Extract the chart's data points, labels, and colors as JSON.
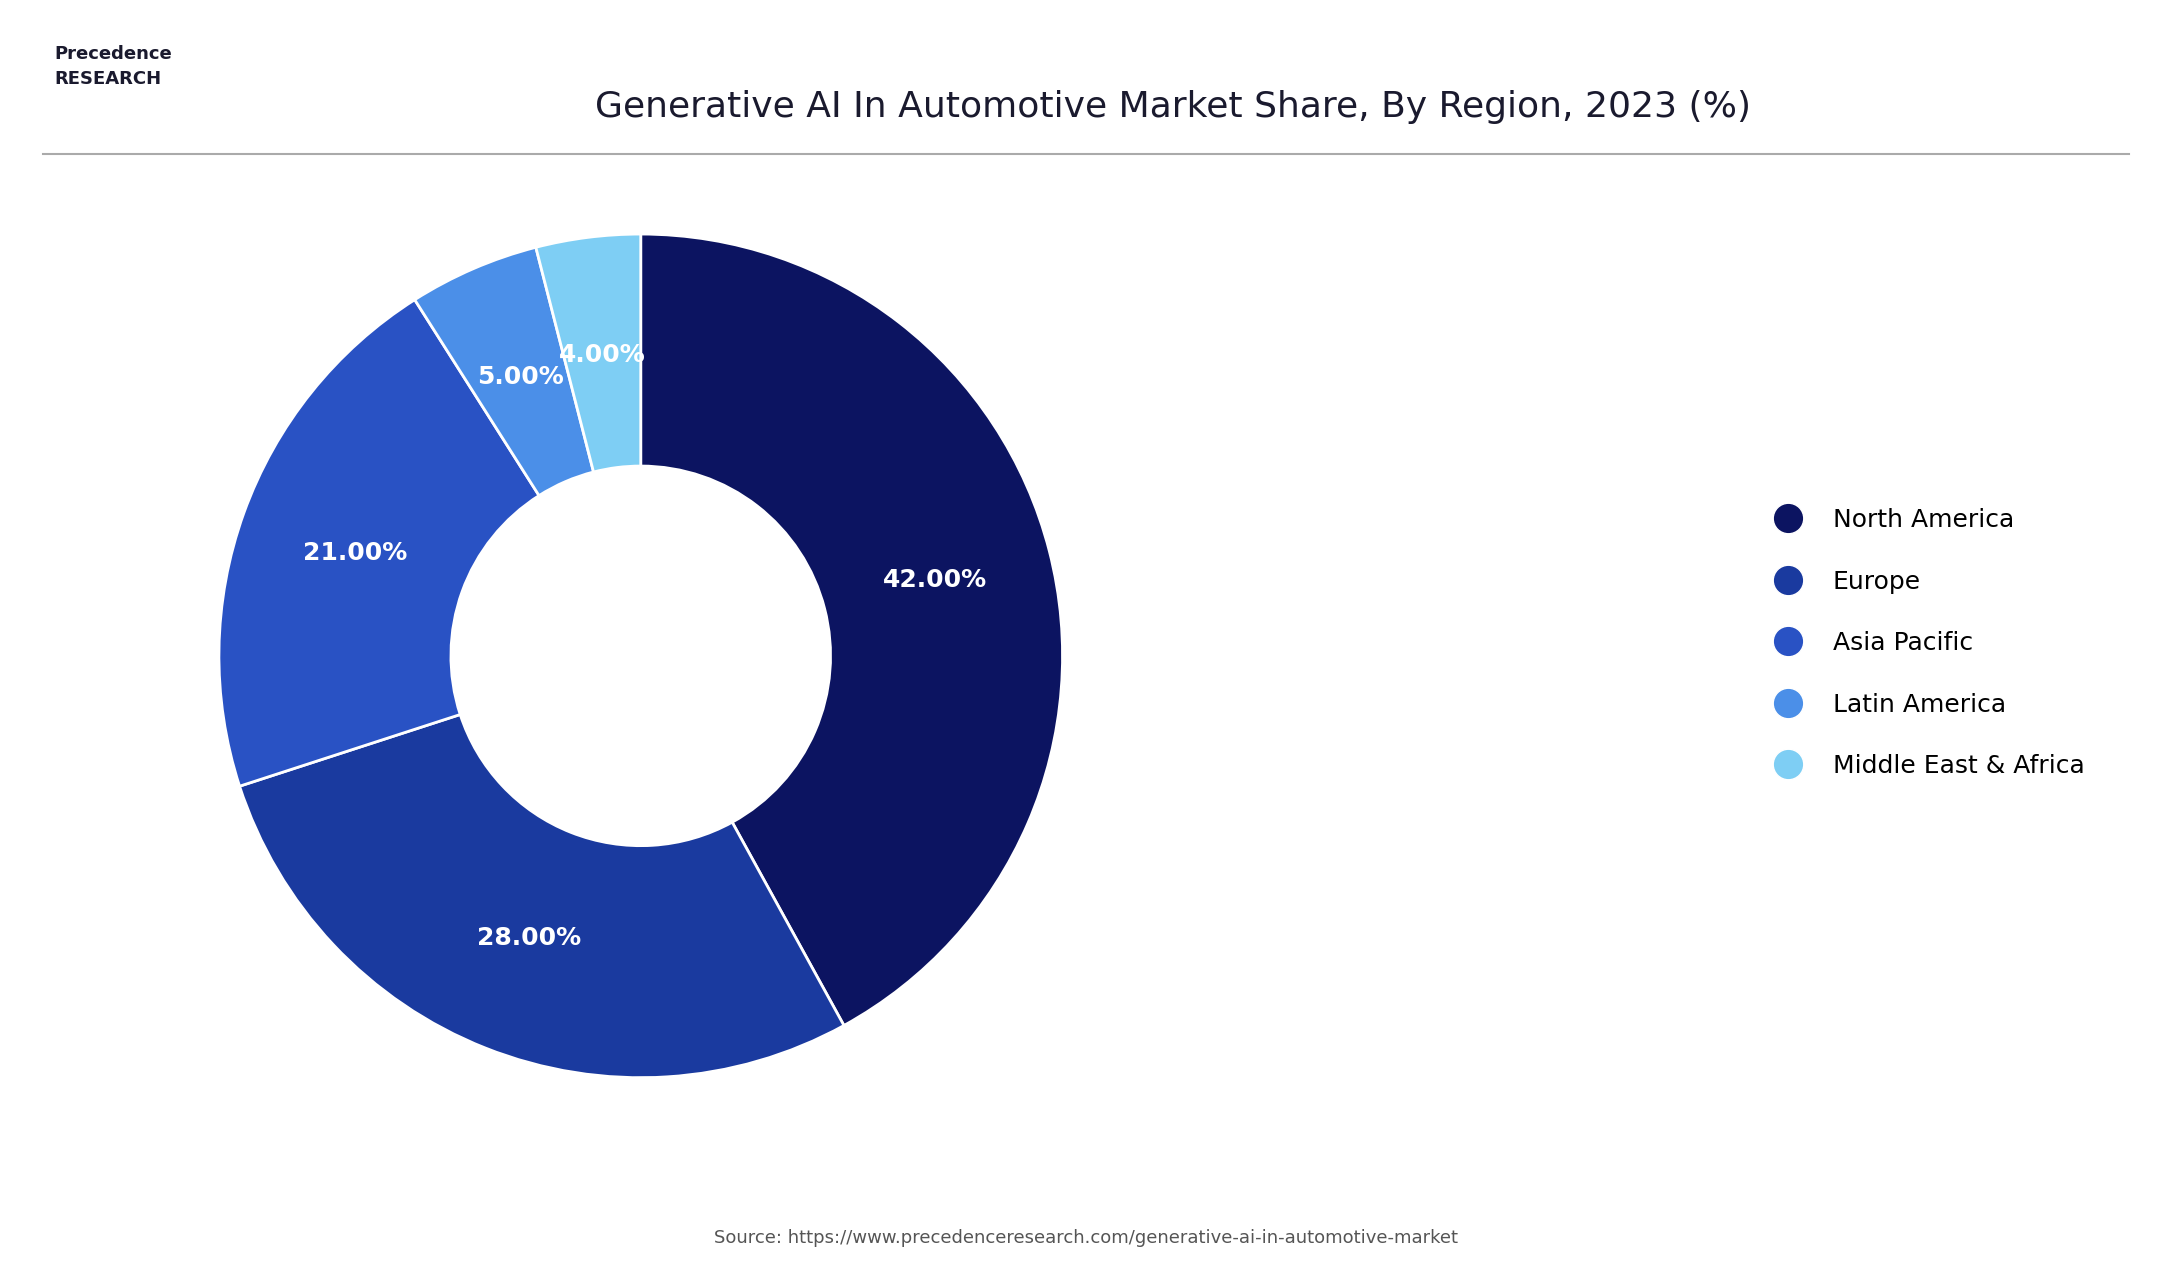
{
  "title": "Generative AI In Automotive Market Share, By Region, 2023 (%)",
  "regions": [
    "North America",
    "Europe",
    "Asia Pacific",
    "Latin America",
    "Middle East & Africa"
  ],
  "values": [
    42.0,
    28.0,
    21.0,
    5.0,
    4.0
  ],
  "colors": [
    "#0C1461",
    "#1A3A9F",
    "#2952C4",
    "#4B8FE8",
    "#7ECEF4"
  ],
  "labels": [
    "42.00%",
    "28.00%",
    "21.00%",
    "5.00%",
    "4.00%"
  ],
  "source_text": "Source: https://www.precedenceresearch.com/generative-ai-in-automotive-market",
  "background_color": "#FFFFFF",
  "title_color": "#1a1a2e",
  "label_font_size": 18,
  "legend_font_size": 18,
  "title_font_size": 26,
  "startangle": 90
}
